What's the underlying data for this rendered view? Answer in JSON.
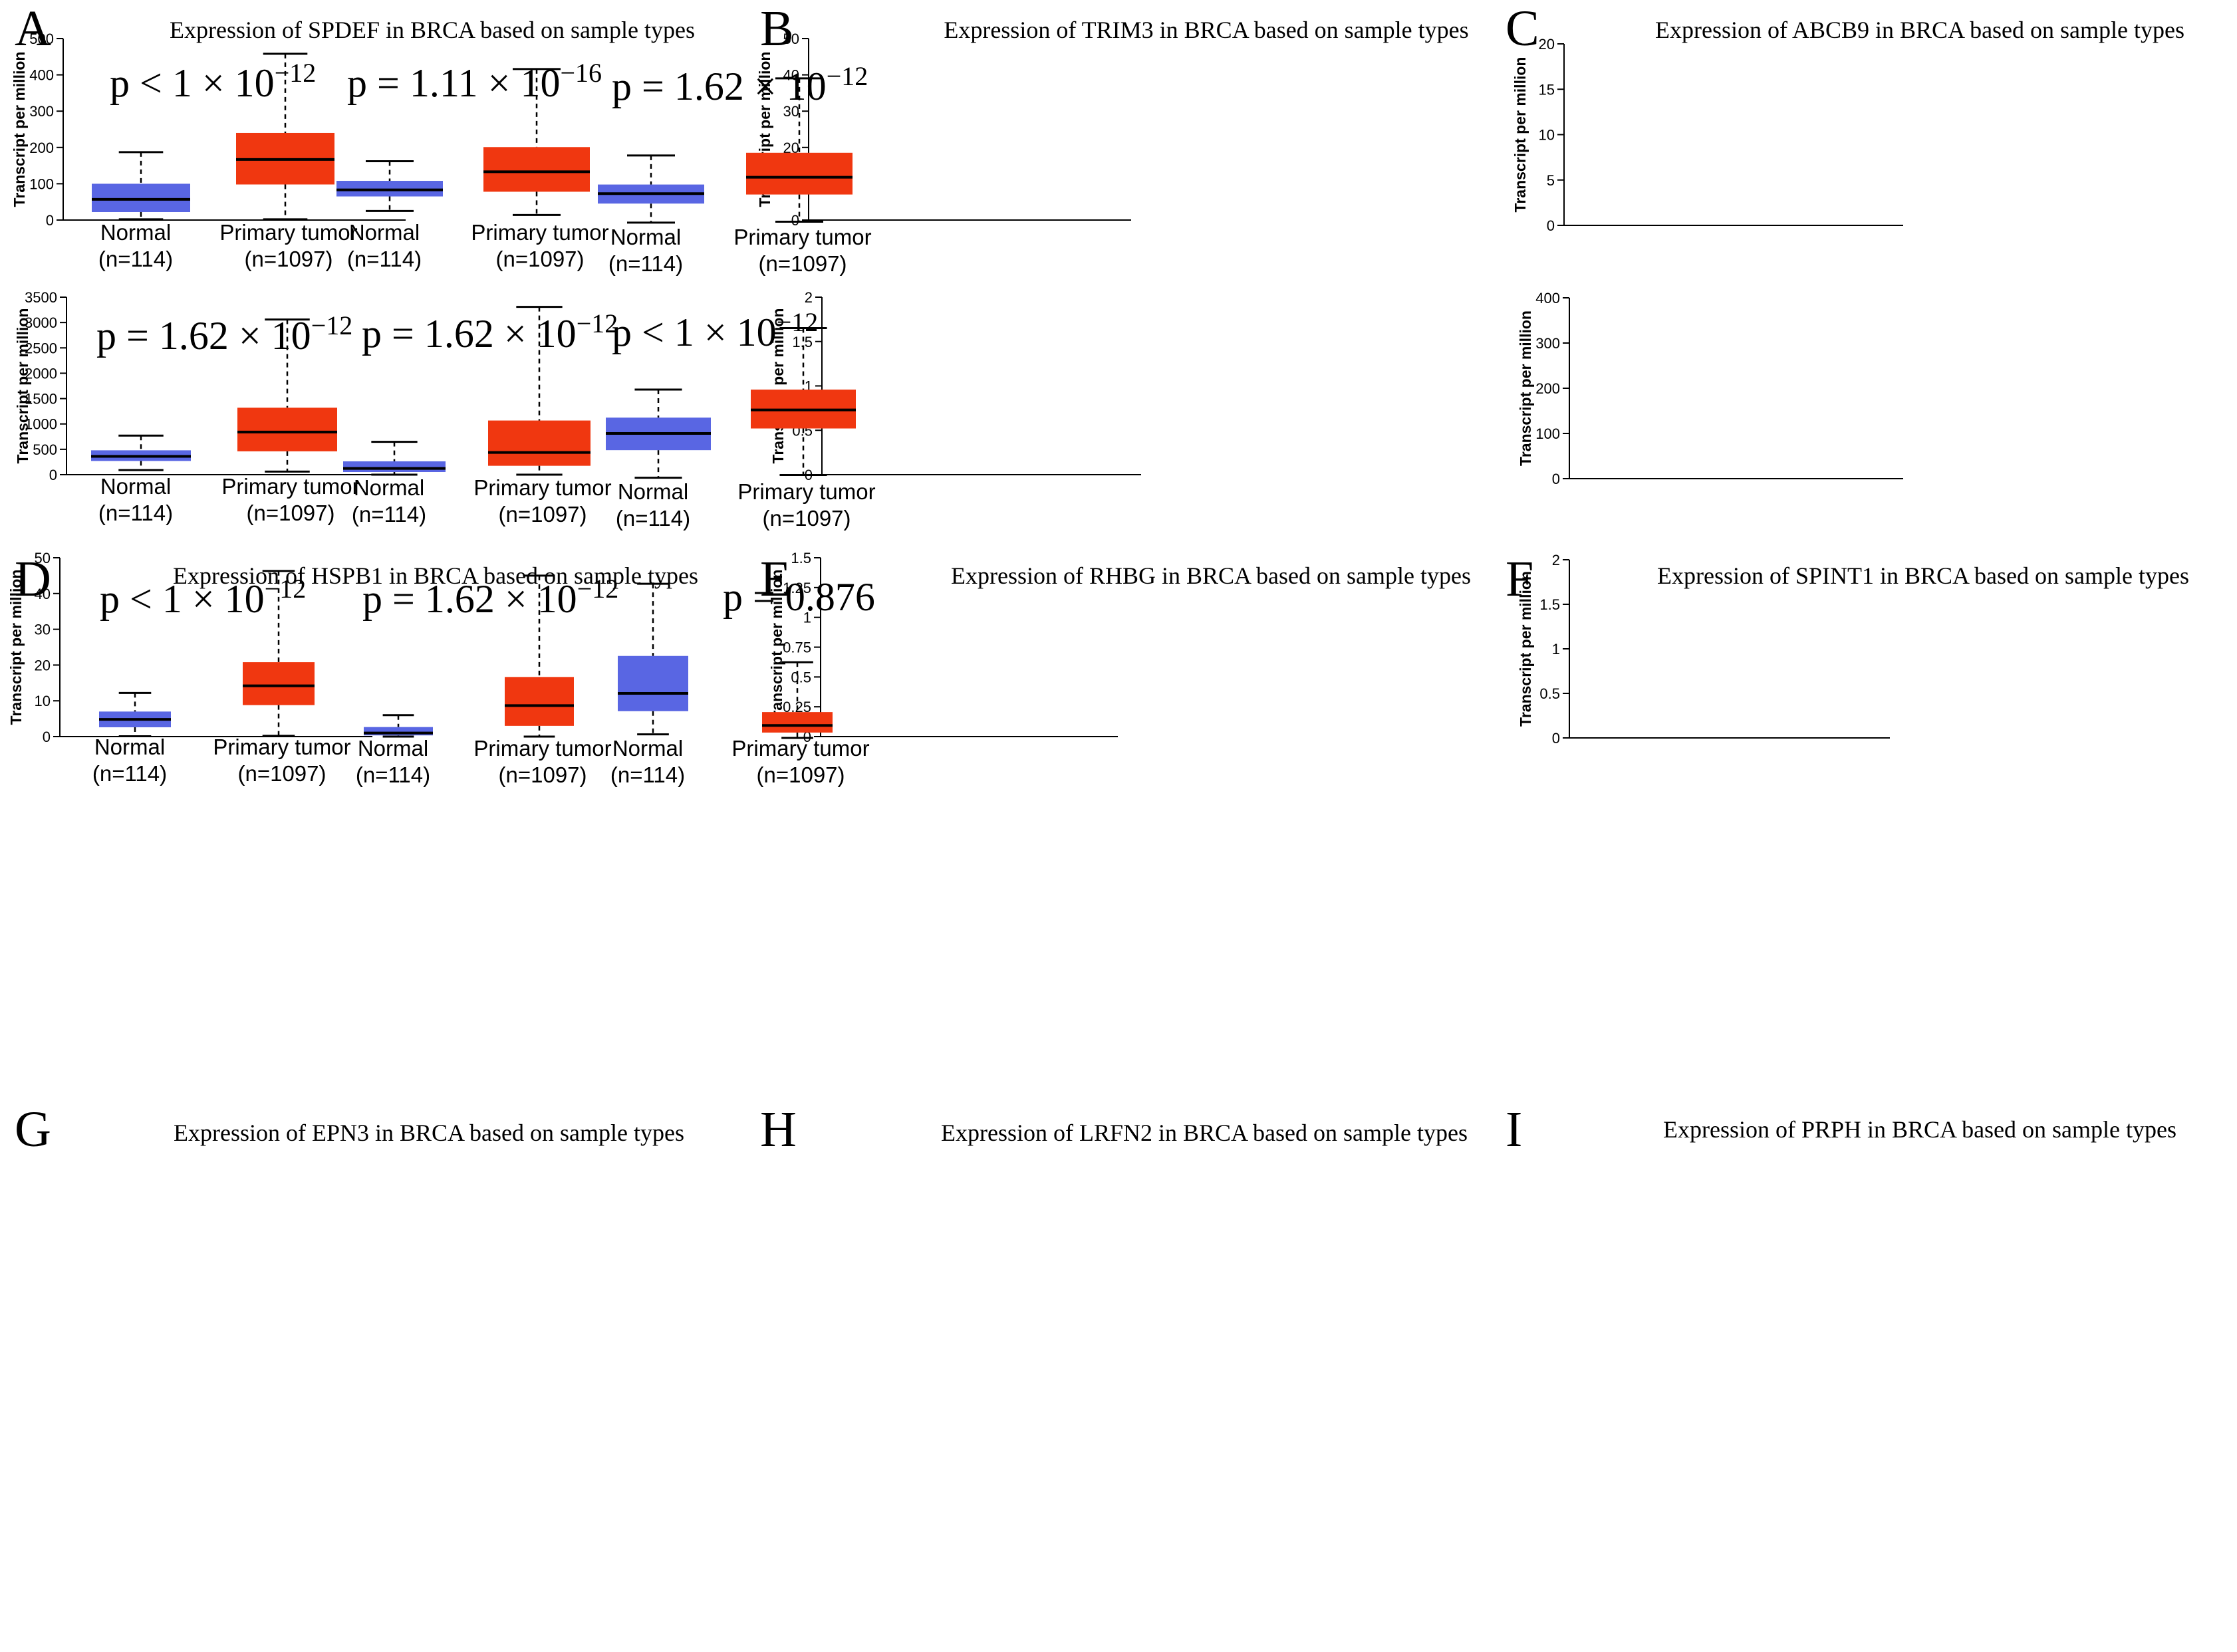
{
  "figure_title": "",
  "colors": {
    "normal": "#5966E3",
    "tumor": "#F03710",
    "axis": "#000000"
  },
  "chart_data": [
    {
      "panel": "A",
      "type": "boxplot",
      "title": "Expression of SPDEF in BRCA based on sample types",
      "ylabel": "Transcript per million",
      "ylim": [
        0,
        500
      ],
      "yticks": [
        0,
        100,
        200,
        300,
        400,
        500
      ],
      "ytick_labels": [
        "0",
        "100",
        "200",
        "300",
        "400",
        "500"
      ],
      "p_value": {
        "prefix": "p < 1 × 10",
        "exp": "−12"
      },
      "groups": [
        {
          "name": "Normal",
          "n": "(n=114)",
          "min": 2,
          "q1": 22,
          "median": 57,
          "q3": 100,
          "max": 187,
          "color": "#5966E3"
        },
        {
          "name": "Primary tumor",
          "n": "(n=1097)",
          "min": 2,
          "q1": 98,
          "median": 167,
          "q3": 240,
          "max": 458,
          "color": "#F03710"
        }
      ]
    },
    {
      "panel": "B",
      "type": "boxplot",
      "title": "Expression of TRIM3 in BRCA based on sample types",
      "ylabel": "Transcript per million",
      "ylim": [
        0,
        50
      ],
      "yticks": [
        0,
        10,
        20,
        30,
        40,
        50
      ],
      "ytick_labels": [
        "0",
        "10",
        "20",
        "30",
        "40",
        "50"
      ],
      "p_value": {
        "prefix": "p = 1.11 × 10",
        "exp": "−16"
      },
      "groups": [
        {
          "name": "Normal",
          "n": "(n=114)",
          "min": 2.5,
          "q1": 6.5,
          "median": 8.3,
          "q3": 10.8,
          "max": 16.2,
          "color": "#5966E3"
        },
        {
          "name": "Primary tumor",
          "n": "(n=1097)",
          "min": 1.4,
          "q1": 7.8,
          "median": 13.3,
          "q3": 20.1,
          "max": 41.6,
          "color": "#F03710"
        }
      ]
    },
    {
      "panel": "C",
      "type": "boxplot",
      "title": "Expression of ABCB9 in BRCA based on sample types",
      "ylabel": "Transcript per million",
      "ylim": [
        0,
        20
      ],
      "yticks": [
        0,
        5,
        10,
        15,
        20
      ],
      "ytick_labels": [
        "0",
        "5",
        "10",
        "15",
        "20"
      ],
      "p_value": {
        "prefix": "p = 1.62 × 10",
        "exp": "−12"
      },
      "groups": [
        {
          "name": "Normal",
          "n": "(n=114)",
          "min": 0.3,
          "q1": 2.4,
          "median": 3.5,
          "q3": 4.5,
          "max": 7.7,
          "color": "#5966E3"
        },
        {
          "name": "Primary tumor",
          "n": "(n=1097)",
          "min": 0.4,
          "q1": 3.4,
          "median": 5.3,
          "q3": 8.0,
          "max": 16.2,
          "color": "#F03710"
        }
      ]
    },
    {
      "panel": "D",
      "type": "boxplot",
      "title": "Expression of HSPB1 in BRCA based on sample types",
      "ylabel": "Transcript per million",
      "ylim": [
        0,
        3500
      ],
      "yticks": [
        0,
        500,
        1000,
        1500,
        2000,
        2500,
        3000,
        3500
      ],
      "ytick_labels": [
        "0",
        "500",
        "1000",
        "1500",
        "2000",
        "2500",
        "3000",
        "3500"
      ],
      "p_value": {
        "prefix": "p = 1.62 × 10",
        "exp": "−12"
      },
      "groups": [
        {
          "name": "Normal",
          "n": "(n=114)",
          "min": 90,
          "q1": 270,
          "median": 360,
          "q3": 480,
          "max": 770,
          "color": "#5966E3"
        },
        {
          "name": "Primary tumor",
          "n": "(n=1097)",
          "min": 60,
          "q1": 460,
          "median": 840,
          "q3": 1320,
          "max": 3060,
          "color": "#F03710"
        }
      ]
    },
    {
      "panel": "E",
      "type": "boxplot",
      "title": "Expression of RHBG in BRCA based on sample types",
      "ylabel": "Transcript per million",
      "ylim": [
        0,
        2
      ],
      "yticks": [
        0,
        0.5,
        1,
        1.5,
        2
      ],
      "ytick_labels": [
        "0",
        "0.5",
        "1",
        "1.5",
        "2"
      ],
      "p_value": {
        "prefix": "p = 1.62 × 10",
        "exp": "−12"
      },
      "groups": [
        {
          "name": "Normal",
          "n": "(n=114)",
          "min": 0.0,
          "q1": 0.03,
          "median": 0.07,
          "q3": 0.15,
          "max": 0.37,
          "color": "#5966E3"
        },
        {
          "name": "Primary tumor",
          "n": "(n=1097)",
          "min": 0.0,
          "q1": 0.1,
          "median": 0.25,
          "q3": 0.61,
          "max": 1.89,
          "color": "#F03710"
        }
      ]
    },
    {
      "panel": "F",
      "type": "boxplot",
      "title": "Expression of SPINT1 in BRCA based on sample types",
      "ylabel": "Transcript per million",
      "ylim": [
        0,
        400
      ],
      "yticks": [
        0,
        100,
        200,
        300,
        400
      ],
      "ytick_labels": [
        "0",
        "100",
        "200",
        "300",
        "400"
      ],
      "p_value": {
        "prefix": "p < 1 × 10",
        "exp": "−12"
      },
      "groups": [
        {
          "name": "Normal",
          "n": "(n=114)",
          "min": 2,
          "q1": 63,
          "median": 100,
          "q3": 135,
          "max": 197,
          "color": "#5966E3"
        },
        {
          "name": "Primary tumor",
          "n": "(n=1097)",
          "min": 8,
          "q1": 111,
          "median": 152,
          "q3": 197,
          "max": 333,
          "color": "#F03710"
        }
      ]
    },
    {
      "panel": "G",
      "type": "boxplot",
      "title": "Expression of EPN3 in BRCA based on sample types",
      "ylabel": "Transcript per million",
      "ylim": [
        0,
        50
      ],
      "yticks": [
        0,
        10,
        20,
        30,
        40,
        50
      ],
      "ytick_labels": [
        "0",
        "10",
        "20",
        "30",
        "40",
        "50"
      ],
      "p_value": {
        "prefix": "p < 1 × 10",
        "exp": "−12"
      },
      "groups": [
        {
          "name": "Normal",
          "n": "(n=114)",
          "min": 0.1,
          "q1": 2.6,
          "median": 4.8,
          "q3": 7.0,
          "max": 12.2,
          "color": "#5966E3"
        },
        {
          "name": "Primary tumor",
          "n": "(n=1097)",
          "min": 0.2,
          "q1": 8.8,
          "median": 14.2,
          "q3": 20.8,
          "max": 46.3,
          "color": "#F03710"
        }
      ]
    },
    {
      "panel": "H",
      "type": "boxplot",
      "title": "Expression of LRFN2 in BRCA based on sample types",
      "ylabel": "Transcript per million",
      "ylim": [
        0,
        1.5
      ],
      "yticks": [
        0,
        0.25,
        0.5,
        0.75,
        1,
        1.25,
        1.5
      ],
      "ytick_labels": [
        "0",
        "0.25",
        "0.5",
        "0.75",
        "1",
        "1.25",
        "1.5"
      ],
      "p_value": {
        "prefix": "p = 1.62 × 10",
        "exp": "−12"
      },
      "groups": [
        {
          "name": "Normal",
          "n": "(n=114)",
          "min": 0.0,
          "q1": 0.01,
          "median": 0.03,
          "q3": 0.08,
          "max": 0.18,
          "color": "#5966E3"
        },
        {
          "name": "Primary tumor",
          "n": "(n=1097)",
          "min": 0.0,
          "q1": 0.09,
          "median": 0.26,
          "q3": 0.5,
          "max": 1.35,
          "color": "#F03710"
        }
      ]
    },
    {
      "panel": "I",
      "type": "boxplot",
      "title": "Expression of PRPH in BRCA based on sample types",
      "ylabel": "Transcript per million",
      "ylim": [
        0,
        2
      ],
      "yticks": [
        0,
        0.5,
        1,
        1.5,
        2
      ],
      "ytick_labels": [
        "0",
        "0.5",
        "1",
        "1.5",
        "2"
      ],
      "p_value": {
        "prefix": "p = 0.876",
        "exp": ""
      },
      "groups": [
        {
          "name": "Normal",
          "n": "(n=114)",
          "min": 0.04,
          "q1": 0.3,
          "median": 0.5,
          "q3": 0.92,
          "max": 1.73,
          "color": "#5966E3"
        },
        {
          "name": "Primary tumor",
          "n": "(n=1097)",
          "min": 0.0,
          "q1": 0.06,
          "median": 0.14,
          "q3": 0.29,
          "max": 0.85,
          "color": "#F03710"
        }
      ]
    }
  ]
}
